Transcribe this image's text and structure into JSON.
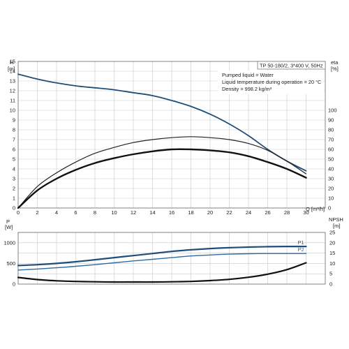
{
  "header": {
    "title": "TP 50-180/2, 3*400 V, 50Hz",
    "info_lines": [
      "Pumped liquid = Water",
      "Liquid temperature during operation = 20 °C",
      "Density = 998.2 kg/m³"
    ]
  },
  "colors": {
    "head": "#1f4e79",
    "eta_thin": "#222222",
    "eta_bold": "#111111",
    "p1": "#1f4e79",
    "p2": "#2e6aa3",
    "npsh": "#111111"
  },
  "chart_data": [
    {
      "type": "line",
      "name": "performance",
      "ylabel_left": {
        "symbol": "H",
        "unit": "[m]"
      },
      "ylabel_right": {
        "symbol": "eta",
        "unit": "[%]"
      },
      "xlabel": "Q [m³/h]",
      "xlim": [
        0,
        32
      ],
      "ylim": [
        0,
        15
      ],
      "ylim_right": [
        0,
        150
      ],
      "xticks": [
        "0",
        "2",
        "4",
        "6",
        "8",
        "10",
        "12",
        "14",
        "16",
        "18",
        "20",
        "22",
        "24",
        "26",
        "28",
        "30"
      ],
      "yticks": [
        "0",
        "1",
        "2",
        "3",
        "4",
        "5",
        "6",
        "7",
        "8",
        "9",
        "10",
        "11",
        "12",
        "13",
        "14",
        "15"
      ],
      "yticks_right": [
        "0",
        "10",
        "20",
        "30",
        "40",
        "50",
        "60",
        "70",
        "80",
        "90",
        "100"
      ],
      "series": [
        {
          "axis": "left",
          "color": "head",
          "x": [
            0,
            2,
            4,
            6,
            8,
            10,
            12,
            14,
            16,
            18,
            20,
            22,
            24,
            26,
            28,
            30
          ],
          "y": [
            13.7,
            13.2,
            12.8,
            12.5,
            12.3,
            12.1,
            11.8,
            11.5,
            11.0,
            10.4,
            9.6,
            8.6,
            7.4,
            6.0,
            4.8,
            3.8
          ]
        },
        {
          "axis": "right",
          "color": "eta_thin",
          "x": [
            0,
            2,
            4,
            6,
            8,
            10,
            12,
            14,
            16,
            18,
            20,
            22,
            24,
            26,
            28,
            30
          ],
          "y": [
            0,
            22,
            36,
            47,
            56,
            62,
            67,
            70,
            72,
            73,
            72,
            70,
            66,
            59,
            48,
            35
          ]
        },
        {
          "axis": "right",
          "color": "eta_bold",
          "x": [
            0,
            2,
            4,
            6,
            8,
            10,
            12,
            14,
            16,
            18,
            20,
            22,
            24,
            26,
            28,
            30
          ],
          "y": [
            0,
            18,
            30,
            39,
            46,
            51,
            55,
            58,
            60,
            60,
            59,
            57,
            53,
            47,
            40,
            31
          ]
        }
      ]
    },
    {
      "type": "line",
      "name": "power-npsh",
      "ylabel_left": {
        "symbol": "P",
        "unit": "[W]"
      },
      "ylabel_right": {
        "symbol": "NPSH",
        "unit": "[m]"
      },
      "xlim": [
        0,
        32
      ],
      "ylim": [
        0,
        1250
      ],
      "ylim_right": [
        0,
        25
      ],
      "yticks": [
        "0",
        "500",
        "1000"
      ],
      "yticks_right": [
        "0",
        "5",
        "10",
        "15",
        "20",
        "25"
      ],
      "series": [
        {
          "name": "P1",
          "axis": "left",
          "color": "p1",
          "x": [
            0,
            2,
            4,
            6,
            8,
            10,
            12,
            14,
            16,
            18,
            20,
            22,
            24,
            26,
            28,
            30
          ],
          "y": [
            450,
            470,
            500,
            540,
            590,
            640,
            690,
            740,
            790,
            830,
            860,
            880,
            895,
            905,
            910,
            910
          ]
        },
        {
          "name": "P2",
          "axis": "left",
          "color": "p2",
          "x": [
            0,
            2,
            4,
            6,
            8,
            10,
            12,
            14,
            16,
            18,
            20,
            22,
            24,
            26,
            28,
            30
          ],
          "y": [
            340,
            365,
            395,
            430,
            470,
            515,
            560,
            600,
            640,
            680,
            705,
            725,
            735,
            740,
            740,
            740
          ]
        },
        {
          "axis": "right",
          "color": "npsh",
          "x": [
            0,
            2,
            4,
            6,
            8,
            10,
            12,
            14,
            16,
            18,
            20,
            22,
            24,
            26,
            28,
            30
          ],
          "y": [
            3.2,
            2.2,
            1.6,
            1.3,
            1.1,
            1.0,
            1.0,
            1.0,
            1.1,
            1.3,
            1.7,
            2.3,
            3.3,
            4.8,
            7.0,
            10.3
          ]
        }
      ]
    }
  ]
}
